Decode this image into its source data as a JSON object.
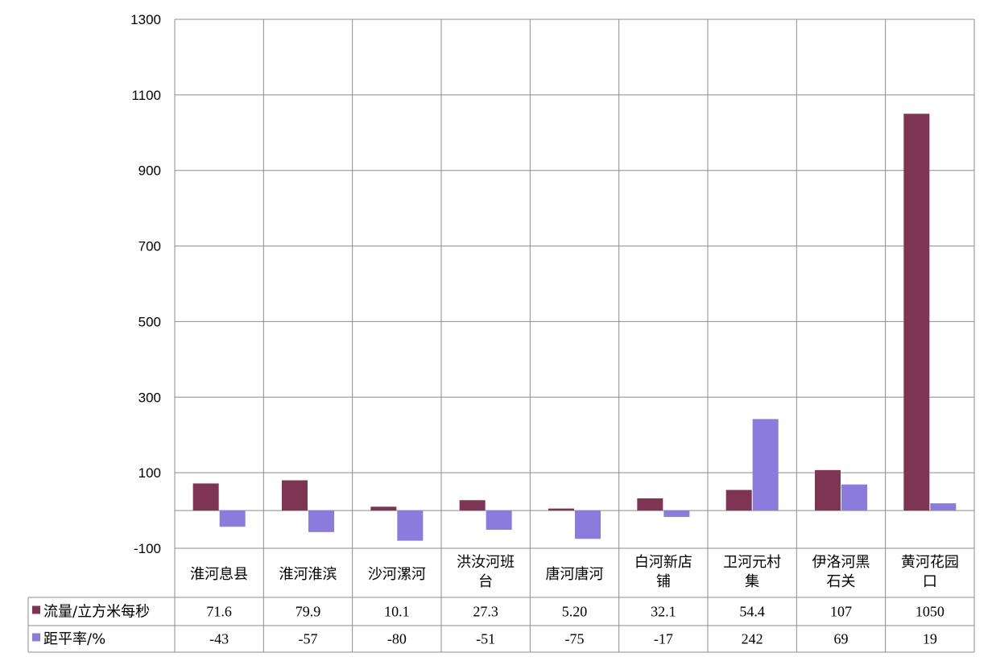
{
  "chart_data": {
    "type": "bar",
    "categories": [
      [
        "淮河息县"
      ],
      [
        "淮河淮滨"
      ],
      [
        "沙河漯河"
      ],
      [
        "洪汝河班",
        "台"
      ],
      [
        "唐河唐河"
      ],
      [
        "白河新店",
        "铺"
      ],
      [
        "卫河元村",
        "集"
      ],
      [
        "伊洛河黑",
        "石关"
      ],
      [
        "黄河花园",
        "口"
      ]
    ],
    "series": [
      {
        "name": "流量/立方米每秒",
        "values": [
          71.6,
          79.9,
          10.1,
          27.3,
          5.2,
          32.1,
          54.4,
          107,
          1050
        ],
        "labels": [
          "71.6",
          "79.9",
          "10.1",
          "27.3",
          "5.20",
          "32.1",
          "54.4",
          "107",
          "1050"
        ],
        "color": "#7f3454"
      },
      {
        "name": "距平率/%",
        "values": [
          -43,
          -57,
          -80,
          -51,
          -75,
          -17,
          242,
          69,
          19
        ],
        "labels": [
          "-43",
          "-57",
          "-80",
          "-51",
          "-75",
          "-17",
          "242",
          "69",
          "19"
        ],
        "color": "#8b7bdc"
      }
    ],
    "ylim": [
      -100,
      1300
    ],
    "yticks": [
      -100,
      100,
      300,
      500,
      700,
      900,
      1100,
      1300
    ],
    "grid": true,
    "legend": "data-table-left"
  }
}
